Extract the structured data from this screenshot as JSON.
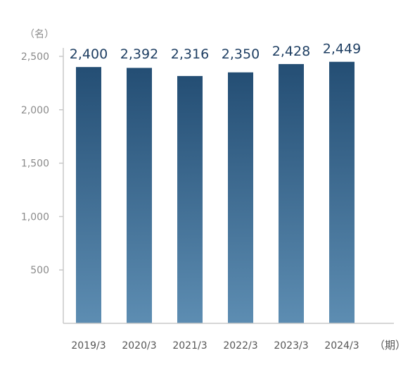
{
  "chart_data": {
    "type": "bar",
    "categories": [
      "2019/3",
      "2020/3",
      "2021/3",
      "2022/3",
      "2023/3",
      "2024/3"
    ],
    "values": [
      2400,
      2392,
      2316,
      2350,
      2428,
      2449
    ],
    "value_labels": [
      "2,400",
      "2,392",
      "2,316",
      "2,350",
      "2,428",
      "2,449"
    ],
    "y_unit": "（名）",
    "x_unit": "（期）",
    "ylim": [
      0,
      2500
    ],
    "yticks": [
      500,
      1000,
      1500,
      2000,
      2500
    ],
    "ytick_labels": [
      "500",
      "1,000",
      "1,500",
      "2,000",
      "2,500"
    ],
    "grid": false,
    "colors": {
      "bar_top": "#244e74",
      "bar_bottom": "#5d8db2",
      "axis": "#c8c8c8",
      "value_text": "#1f3f63"
    }
  }
}
